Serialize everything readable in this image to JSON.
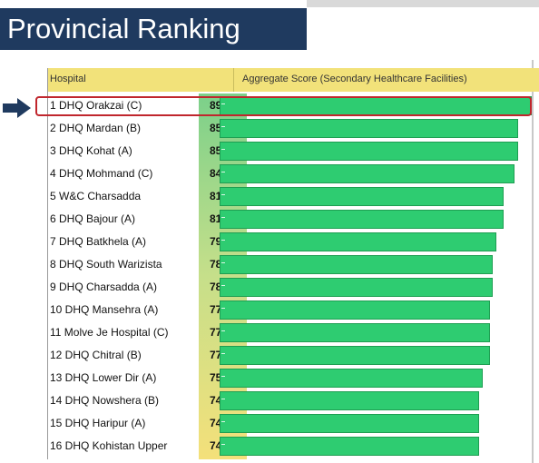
{
  "page": {
    "title": "Provincial Ranking"
  },
  "table": {
    "col_hospital": "Hospital",
    "col_aggregate": "Aggregate Score (Secondary Healthcare Facilities)"
  },
  "colors": {
    "banner": "#1f3a5f",
    "header": "#f2e27a",
    "bar": "#2ecc71",
    "highlight": "#c0262d",
    "arrow": "#1f3a5f"
  },
  "chart_data": {
    "type": "bar",
    "orientation": "horizontal",
    "title": "Provincial Ranking",
    "xlabel": "Aggregate Score (Secondary Healthcare Facilities)",
    "ylabel": "Hospital",
    "categories": [
      "1 DHQ Orakzai (C)",
      "2 DHQ Mardan (B)",
      "3 DHQ Kohat (A)",
      "4 DHQ Mohmand (C)",
      "5 W&C Charsadda",
      "6 DHQ Bajour (A)",
      "7 DHQ Batkhela (A)",
      "8 DHQ South Warizista",
      "9 DHQ Charsadda (A)",
      "10 DHQ Mansehra (A)",
      "11 Molve Je Hospital (C)",
      "12 DHQ Chitral (B)",
      "13 DHQ Lower Dir (A)",
      "14 DHQ Nowshera (B)",
      "15 DHQ Haripur (A)",
      "16 DHQ Kohistan Upper"
    ],
    "values": [
      89,
      85,
      85,
      84,
      81,
      81,
      79,
      78,
      78,
      77,
      77,
      77,
      75,
      74,
      74,
      74
    ],
    "labels": [
      "89%",
      "85%",
      "85%",
      "84%",
      "81%",
      "81%",
      "79%",
      "78%",
      "78%",
      "77%",
      "77%",
      "77%",
      "75%",
      "74%",
      "74%",
      "74%"
    ],
    "highlighted_index": 0
  }
}
